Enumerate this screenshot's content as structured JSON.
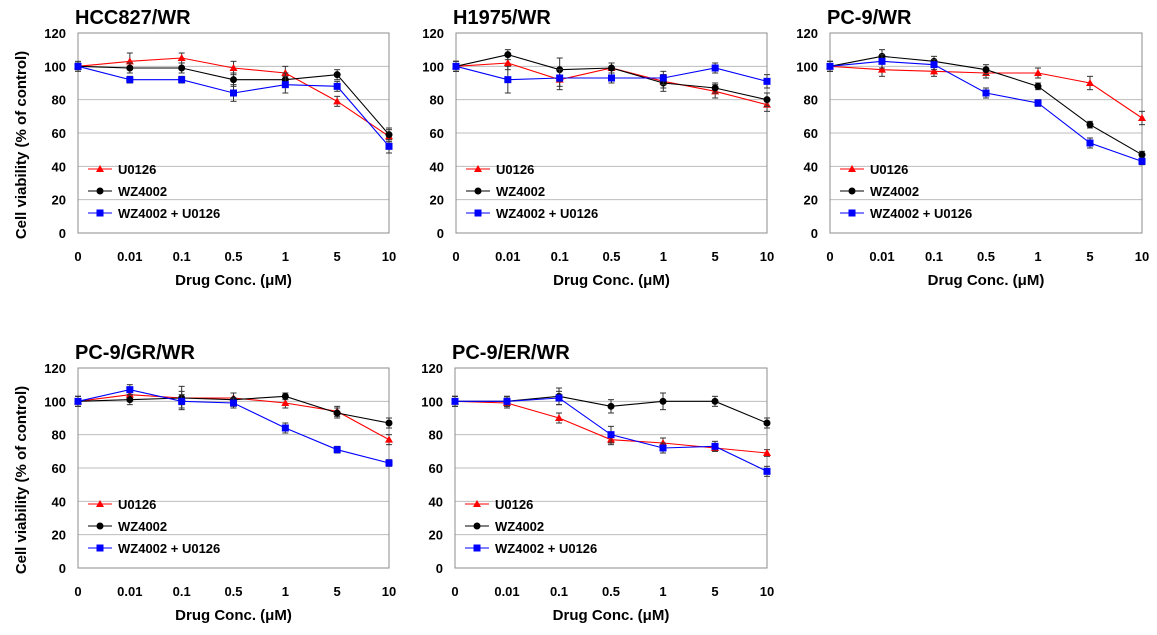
{
  "chart_data": [
    {
      "type": "line",
      "title": "HCC827/WR",
      "xlabel": "Drug Conc. (μM)",
      "ylabel": "Cell viability (% of control)",
      "categories": [
        "0",
        "0.01",
        "0.1",
        "0.5",
        "1",
        "5",
        "10"
      ],
      "ylim": [
        0,
        120
      ],
      "yticks": [
        "0",
        "20",
        "40",
        "60",
        "80",
        "100",
        "120"
      ],
      "grid": true,
      "legend_position": "bottom-left",
      "series": [
        {
          "name": "U0126",
          "color": "#ff0000",
          "marker": "triangle",
          "values": [
            100,
            103,
            105,
            99,
            96,
            79,
            58
          ],
          "errors": [
            2,
            5,
            3,
            4,
            4,
            3,
            4
          ]
        },
        {
          "name": "WZ4002",
          "color": "#000000",
          "marker": "circle",
          "values": [
            100,
            99,
            99,
            92,
            92,
            95,
            59
          ],
          "errors": [
            2,
            3,
            3,
            4,
            4,
            3,
            4
          ]
        },
        {
          "name": "WZ4002 + U0126",
          "color": "#0000ff",
          "marker": "square",
          "values": [
            100,
            92,
            92,
            84,
            89,
            88,
            52
          ],
          "errors": [
            3,
            2,
            2,
            5,
            5,
            3,
            4
          ]
        }
      ]
    },
    {
      "type": "line",
      "title": "H1975/WR",
      "xlabel": "Drug Conc. (μM)",
      "ylabel": "",
      "categories": [
        "0",
        "0.01",
        "0.1",
        "0.5",
        "1",
        "5",
        "10"
      ],
      "ylim": [
        0,
        120
      ],
      "yticks": [
        "0",
        "20",
        "40",
        "60",
        "80",
        "100",
        "120"
      ],
      "grid": true,
      "legend_position": "bottom-left",
      "series": [
        {
          "name": "U0126",
          "color": "#ff0000",
          "marker": "triangle",
          "values": [
            100,
            102,
            92,
            99,
            91,
            85,
            77
          ],
          "errors": [
            3,
            4,
            6,
            3,
            4,
            4,
            4
          ]
        },
        {
          "name": "WZ4002",
          "color": "#000000",
          "marker": "circle",
          "values": [
            100,
            107,
            98,
            99,
            90,
            87,
            80
          ],
          "errors": [
            3,
            3,
            7,
            3,
            5,
            3,
            4
          ]
        },
        {
          "name": "WZ4002 + U0126",
          "color": "#0000ff",
          "marker": "square",
          "values": [
            100,
            92,
            93,
            93,
            93,
            99,
            91
          ],
          "errors": [
            3,
            8,
            5,
            3,
            4,
            3,
            4
          ]
        }
      ]
    },
    {
      "type": "line",
      "title": "PC-9/WR",
      "xlabel": "Drug Conc. (μM)",
      "ylabel": "",
      "categories": [
        "0",
        "0.01",
        "0.1",
        "0.5",
        "1",
        "5",
        "10"
      ],
      "ylim": [
        0,
        120
      ],
      "yticks": [
        "0",
        "20",
        "40",
        "60",
        "80",
        "100",
        "120"
      ],
      "grid": true,
      "legend_position": "bottom-left",
      "series": [
        {
          "name": "U0126",
          "color": "#ff0000",
          "marker": "triangle",
          "values": [
            100,
            98,
            97,
            96,
            96,
            90,
            69
          ],
          "errors": [
            3,
            4,
            3,
            3,
            3,
            4,
            4
          ]
        },
        {
          "name": "WZ4002",
          "color": "#000000",
          "marker": "circle",
          "values": [
            100,
            106,
            103,
            98,
            88,
            65,
            47
          ],
          "errors": [
            3,
            4,
            3,
            3,
            2,
            2,
            2
          ]
        },
        {
          "name": "WZ4002 + U0126",
          "color": "#0000ff",
          "marker": "square",
          "values": [
            100,
            103,
            101,
            84,
            78,
            54,
            43
          ],
          "errors": [
            3,
            4,
            3,
            3,
            2,
            3,
            2
          ]
        }
      ]
    },
    {
      "type": "line",
      "title": "PC-9/GR/WR",
      "xlabel": "Drug Conc. (μM)",
      "ylabel": "Cell viability (% of control)",
      "categories": [
        "0",
        "0.01",
        "0.1",
        "0.5",
        "1",
        "5",
        "10"
      ],
      "ylim": [
        0,
        120
      ],
      "yticks": [
        "0",
        "20",
        "40",
        "60",
        "80",
        "100",
        "120"
      ],
      "grid": true,
      "legend_position": "bottom-left",
      "series": [
        {
          "name": "U0126",
          "color": "#ff0000",
          "marker": "triangle",
          "values": [
            100,
            104,
            102,
            102,
            99,
            94,
            77
          ],
          "errors": [
            3,
            3,
            4,
            3,
            3,
            3,
            3
          ]
        },
        {
          "name": "WZ4002",
          "color": "#000000",
          "marker": "circle",
          "values": [
            100,
            101,
            102,
            101,
            103,
            93,
            87
          ],
          "errors": [
            3,
            3,
            7,
            4,
            2,
            3,
            3
          ]
        },
        {
          "name": "WZ4002 + U0126",
          "color": "#0000ff",
          "marker": "square",
          "values": [
            100,
            107,
            100,
            99,
            84,
            71,
            63
          ],
          "errors": [
            3,
            3,
            4,
            3,
            3,
            2,
            2
          ]
        }
      ]
    },
    {
      "type": "line",
      "title": "PC-9/ER/WR",
      "xlabel": "Drug Conc. (μM)",
      "ylabel": "",
      "categories": [
        "0",
        "0.01",
        "0.1",
        "0.5",
        "1",
        "5",
        "10"
      ],
      "ylim": [
        0,
        120
      ],
      "yticks": [
        "0",
        "20",
        "40",
        "60",
        "80",
        "100",
        "120"
      ],
      "grid": true,
      "legend_position": "bottom-left",
      "series": [
        {
          "name": "U0126",
          "color": "#ff0000",
          "marker": "triangle",
          "values": [
            100,
            99,
            90,
            77,
            75,
            72,
            69
          ],
          "errors": [
            3,
            3,
            3,
            3,
            3,
            2,
            2
          ]
        },
        {
          "name": "WZ4002",
          "color": "#000000",
          "marker": "circle",
          "values": [
            100,
            100,
            103,
            97,
            100,
            100,
            87
          ],
          "errors": [
            3,
            3,
            5,
            4,
            5,
            3,
            3
          ]
        },
        {
          "name": "WZ4002 + U0126",
          "color": "#0000ff",
          "marker": "square",
          "values": [
            100,
            100,
            102,
            80,
            72,
            73,
            58
          ],
          "errors": [
            3,
            3,
            4,
            5,
            3,
            3,
            3
          ]
        }
      ]
    }
  ]
}
